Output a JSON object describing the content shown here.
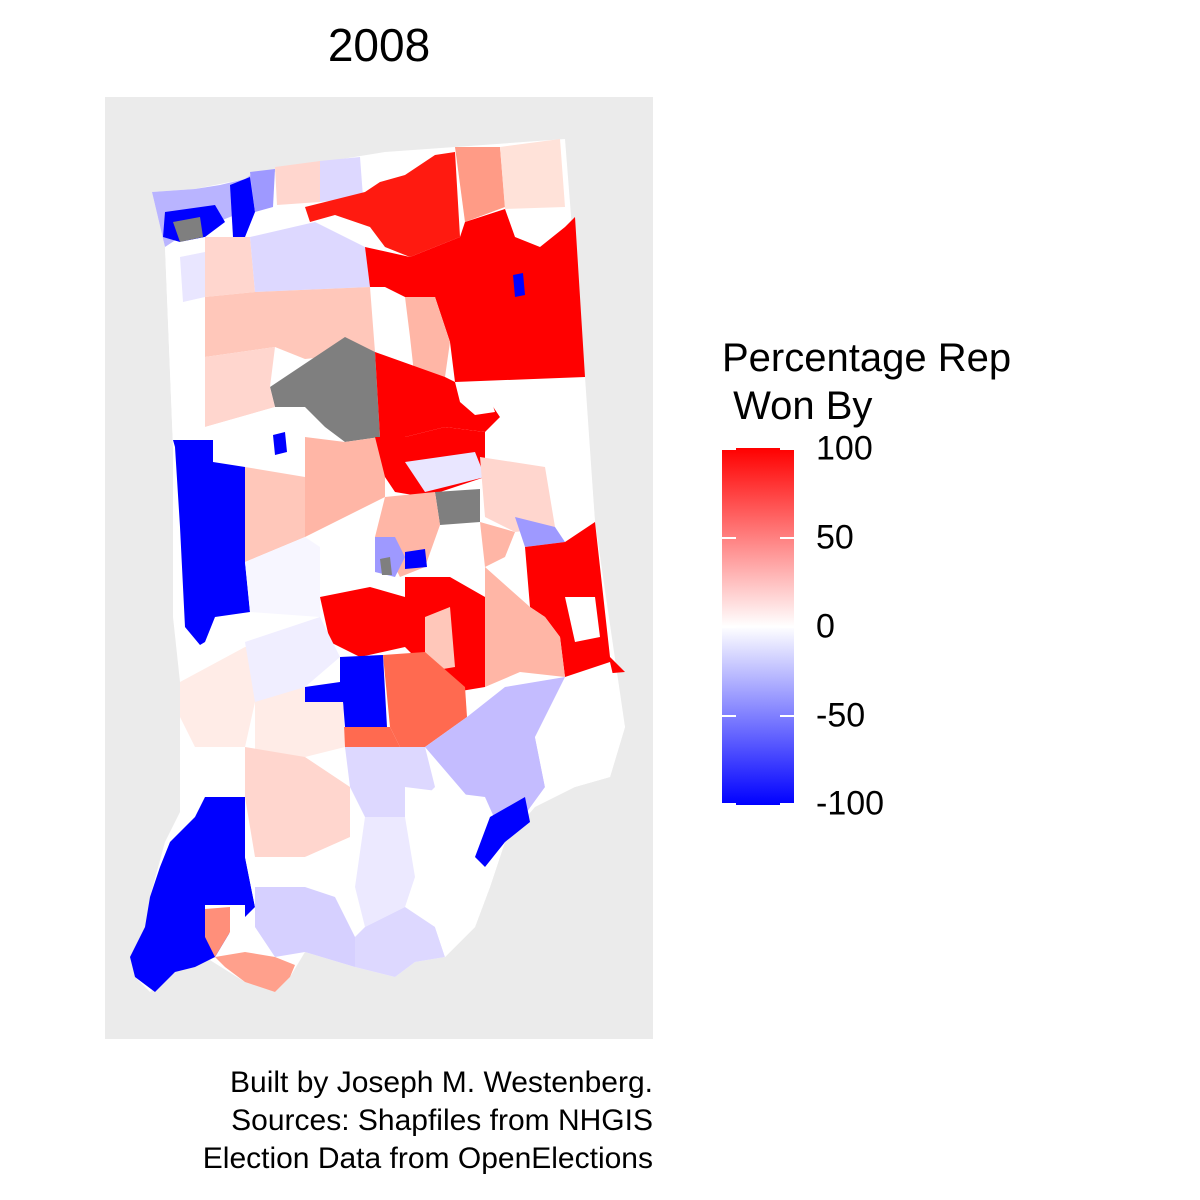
{
  "title": "2008",
  "legend": {
    "title_line1": "Percentage Rep",
    "title_line2": " Won By",
    "ticks": [
      "100",
      "50",
      "0",
      "-50",
      "-100"
    ],
    "colors": {
      "high": "#ff0000",
      "mid": "#ffffff",
      "low": "#0000ff",
      "missing": "#7f7f7f"
    }
  },
  "caption": {
    "line1": "Built by Joseph M. Westenberg.",
    "line2": "Sources: Shapfiles from NHGIS",
    "line3": "Election Data from OpenElections"
  }
}
